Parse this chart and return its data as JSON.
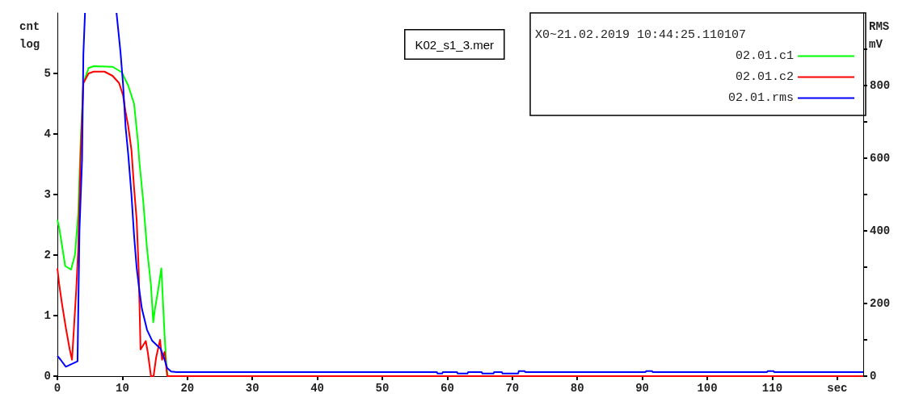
{
  "chart_data": {
    "type": "line",
    "ylabel": "cnt log",
    "y2label": "RMS mV",
    "legend_title": "X0~21.02.2019 10:44:25.110107",
    "annotations": [
      "K02_s1_3.mer"
    ],
    "xlim": [
      0,
      124
    ],
    "xticks": [
      0,
      10,
      20,
      30,
      40,
      50,
      60,
      70,
      80,
      90,
      100,
      110,
      {
        "value": 120,
        "label": "sec"
      }
    ],
    "ylim": [
      0,
      6
    ],
    "yticks": [
      0,
      1,
      2,
      3,
      4,
      5
    ],
    "y2lim": [
      0,
      1000
    ],
    "y2ticks": [
      0,
      {
        "value": 100,
        "label": null
      },
      200,
      {
        "value": 300,
        "label": null
      },
      400,
      {
        "value": 500,
        "label": null
      },
      600,
      {
        "value": 700,
        "label": null
      },
      800,
      {
        "value": 900,
        "label": null
      }
    ],
    "grid": false,
    "legend": "top right",
    "marker": "none",
    "line_style": "solid",
    "series": [
      {
        "name": "02.01.c1",
        "color": "#00ff00",
        "x": [
          0,
          0.3,
          1.0,
          1.2,
          2.1,
          2.7,
          3.2,
          3.4,
          3.6,
          4.0,
          4.8,
          5.6,
          8.5,
          9.9,
          10.9,
          11.8,
          12.4,
          12.6,
          13.2,
          13.8,
          14.4,
          14.75,
          15.0,
          15.5,
          15.8,
          16.0,
          16.2,
          16.5,
          16.8,
          17.0
        ],
        "values": [
          2.58,
          2.44,
          1.96,
          1.82,
          1.76,
          2.0,
          2.67,
          3.3,
          3.93,
          4.84,
          5.09,
          5.12,
          5.11,
          5.02,
          4.8,
          4.5,
          3.87,
          3.56,
          2.9,
          2.1,
          1.5,
          0.89,
          1.1,
          1.42,
          1.64,
          1.78,
          1.33,
          0.67,
          0.13,
          0
        ]
      },
      {
        "name": "02.01.c2",
        "color": "#ff0000",
        "x": [
          0,
          0.3,
          0.7,
          1.3,
          1.9,
          2.25,
          2.5,
          2.9,
          3.2,
          3.4,
          3.6,
          4.0,
          4.8,
          5.6,
          7.25,
          8.5,
          9.5,
          10.1,
          10.5,
          10.9,
          11.4,
          11.8,
          12.2,
          12.5,
          12.6,
          12.8,
          13.6,
          13.9,
          14.4,
          14.8,
          15.2,
          15.8,
          16.1,
          16.5,
          16.9,
          124
        ],
        "values": [
          1.78,
          1.5,
          1.2,
          0.8,
          0.44,
          0.27,
          0.71,
          1.42,
          2.09,
          2.93,
          3.73,
          4.84,
          5.0,
          5.03,
          5.03,
          4.96,
          4.84,
          4.64,
          4.36,
          4.13,
          3.73,
          3.11,
          2.58,
          1.78,
          1.33,
          0.44,
          0.58,
          0.4,
          0,
          0,
          0.31,
          0.6,
          0.27,
          0.4,
          0,
          0
        ]
      },
      {
        "name": "02.01.rms",
        "color": "#0000ff",
        "axis": "y2",
        "x": [
          0,
          0.5,
          1.3,
          2.3,
          3.1,
          3.2,
          3.4,
          3.8,
          4.0,
          4.25,
          4.3,
          9.0,
          9.1,
          9.7,
          10.1,
          10.5,
          10.9,
          11.4,
          11.8,
          12.2,
          12.6,
          13.0,
          13.8,
          14.6,
          15.9,
          16.5,
          16.9,
          17.5,
          18.3,
          58.4,
          58.5,
          59.2,
          59.3,
          61.5,
          61.6,
          63.1,
          63.2,
          65.3,
          65.4,
          67.1,
          67.2,
          68.4,
          68.5,
          70.9,
          71.0,
          71.9,
          72.0,
          90.5,
          90.6,
          91.5,
          91.6,
          109.2,
          109.3,
          110.2,
          110.3,
          124
        ],
        "values": [
          56,
          45,
          26,
          34,
          41,
          164,
          402,
          596,
          887,
          1000,
          null,
          null,
          1000,
          894,
          805,
          685,
          611,
          499,
          387,
          298,
          238,
          186,
          127,
          97,
          75,
          45,
          22,
          13,
          11,
          11,
          7,
          7,
          11,
          11,
          7,
          7,
          11,
          11,
          7,
          7,
          11,
          11,
          7,
          7,
          14,
          14,
          11,
          11,
          14,
          14,
          11,
          11,
          14,
          14,
          11,
          11
        ]
      }
    ]
  }
}
